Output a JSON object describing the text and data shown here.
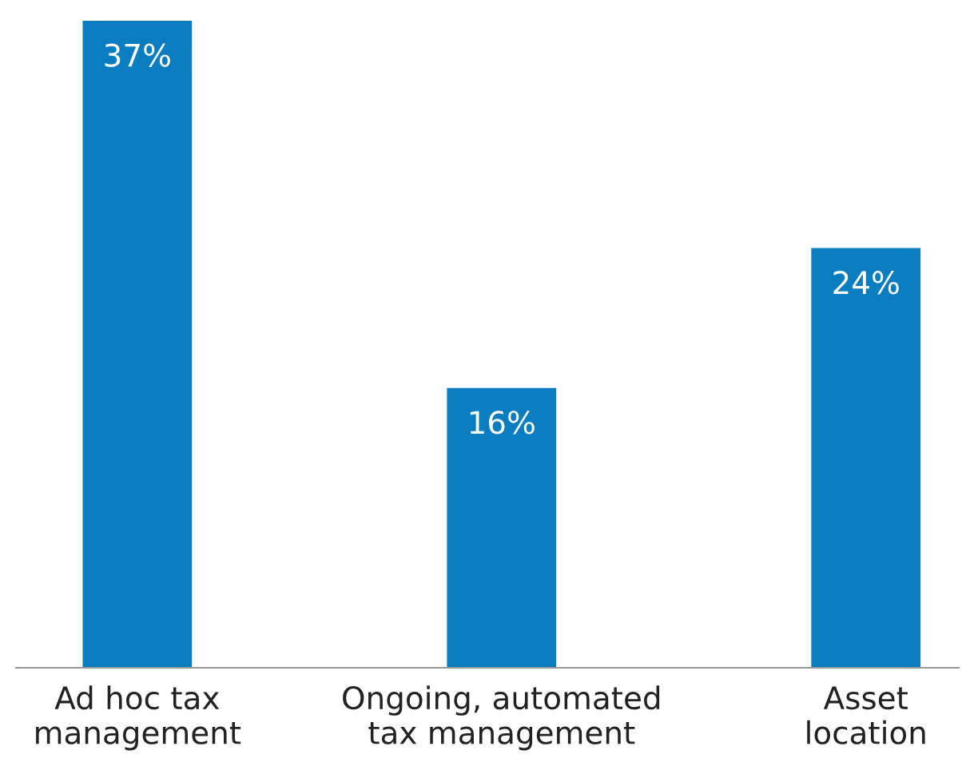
{
  "chart_data": {
    "type": "bar",
    "categories": [
      "Ad hoc tax\nmanagement",
      "Ongoing, automated\ntax management",
      "Asset\nlocation"
    ],
    "values": [
      37,
      16,
      24
    ],
    "value_labels": [
      "37%",
      "16%",
      "24%"
    ],
    "color": "#0a7dc1",
    "grid": false,
    "legend": false
  }
}
